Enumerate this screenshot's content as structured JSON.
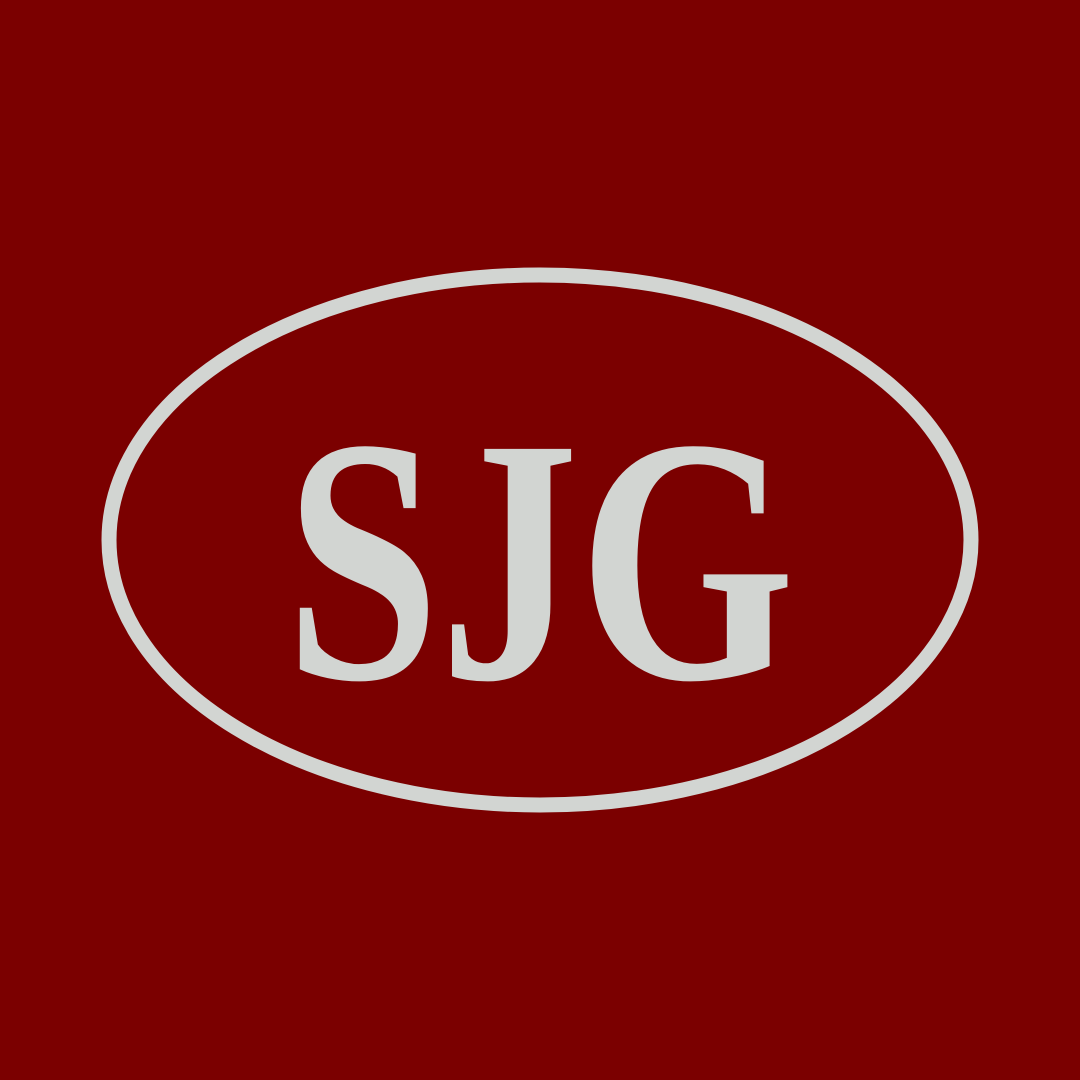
{
  "logo": {
    "monogram": "SJG"
  }
}
